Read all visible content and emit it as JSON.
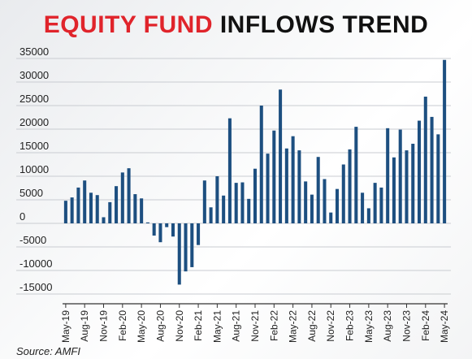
{
  "title": {
    "part1": "EQUITY FUND",
    "part2": "INFLOWS TREND",
    "part1_color": "#e0242b",
    "part2_color": "#111111"
  },
  "source": "Source: AMFI",
  "chart_data": {
    "type": "bar",
    "title": "EQUITY FUND INFLOWS TREND",
    "xlabel": "",
    "ylabel": "",
    "ylim": [
      -15000,
      35000
    ],
    "y_ticks": [
      35000,
      30000,
      25000,
      20000,
      15000,
      10000,
      5000,
      0,
      -5000,
      -10000,
      -15000
    ],
    "y_tick_labels": [
      "35000",
      "30000",
      "25000",
      "20000",
      "15000",
      "10000",
      "5000",
      "0",
      "-5000",
      "-10000",
      "-15000"
    ],
    "x_tick_labels": [
      "May-19",
      "Aug-19",
      "Nov-19",
      "Feb-20",
      "May-20",
      "Aug-20",
      "Nov-20",
      "Feb-21",
      "May-21",
      "Aug-21",
      "Nov-21",
      "Feb-22",
      "May-22",
      "Aug-22",
      "Nov-22",
      "Feb-23",
      "May-23",
      "Aug-23",
      "Nov-23",
      "Feb-24",
      "May-24"
    ],
    "bar_color": "#1d4f80",
    "grid": "horizontal",
    "categories": [
      "May-19",
      "Jun-19",
      "Jul-19",
      "Aug-19",
      "Sep-19",
      "Oct-19",
      "Nov-19",
      "Dec-19",
      "Jan-20",
      "Feb-20",
      "Mar-20",
      "Apr-20",
      "May-20",
      "Jun-20",
      "Jul-20",
      "Aug-20",
      "Sep-20",
      "Oct-20",
      "Nov-20",
      "Dec-20",
      "Jan-21",
      "Feb-21",
      "Mar-21",
      "Apr-21",
      "May-21",
      "Jun-21",
      "Jul-21",
      "Aug-21",
      "Sep-21",
      "Oct-21",
      "Nov-21",
      "Dec-21",
      "Jan-22",
      "Feb-22",
      "Mar-22",
      "Apr-22",
      "May-22",
      "Jun-22",
      "Jul-22",
      "Aug-22",
      "Sep-22",
      "Oct-22",
      "Nov-22",
      "Dec-22",
      "Jan-23",
      "Feb-23",
      "Mar-23",
      "Apr-23",
      "May-23",
      "Jun-23",
      "Jul-23",
      "Aug-23",
      "Sep-23",
      "Oct-23",
      "Nov-23",
      "Dec-23",
      "Jan-24",
      "Feb-24",
      "Mar-24",
      "Apr-24",
      "May-24"
    ],
    "values": [
      4800,
      5500,
      7600,
      9100,
      6500,
      6000,
      1300,
      4500,
      7900,
      10800,
      11700,
      6200,
      5300,
      200,
      -2600,
      -4000,
      -800,
      -2800,
      -13000,
      -10200,
      -9300,
      -4600,
      9100,
      3400,
      10000,
      5900,
      22300,
      8600,
      8700,
      5200,
      11600,
      25000,
      14800,
      19700,
      28400,
      15900,
      18500,
      15500,
      8900,
      6100,
      14100,
      9400,
      2300,
      7300,
      12500,
      15700,
      20500,
      6500,
      3200,
      8600,
      7600,
      20200,
      14000,
      19900,
      15500,
      16900,
      21800,
      26900,
      22600,
      18900,
      34700
    ]
  }
}
